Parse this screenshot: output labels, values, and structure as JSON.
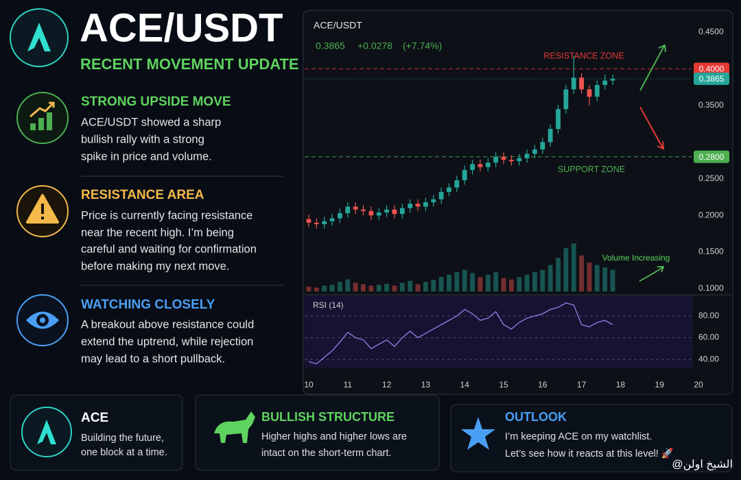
{
  "header": {
    "title": "ACE/USDT",
    "subtitle": "RECENT MOVEMENT UPDATE"
  },
  "sections": [
    {
      "title": "STRONG UPSIDE MOVE",
      "lines": [
        "ACE/USDT showed a sharp",
        "bullish rally with a strong",
        "spike in price and volume."
      ]
    },
    {
      "title": "RESISTANCE AREA",
      "lines": [
        "Price is currently facing resistance",
        "near the recent high. I’m being",
        "careful and waiting for confirmation",
        "before making my next move."
      ]
    },
    {
      "title": "WATCHING CLOSELY",
      "lines": [
        "A breakout above resistance could",
        "extend the uptrend, while rejection",
        "may lead to a short pullback."
      ]
    }
  ],
  "cards": [
    {
      "title": "ACE",
      "lines": [
        "Building the future,",
        "one block at a time."
      ]
    },
    {
      "title": "BULLISH STRUCTURE",
      "lines": [
        "Higher highs and higher lows are",
        "intact on the short-term chart."
      ]
    },
    {
      "title": "OUTLOOK",
      "lines": [
        "I’m keeping ACE on my watchlist.",
        "Let’s see how it reacts at this level! 🚀"
      ]
    }
  ],
  "watermark": "@الشيخ اولن",
  "chart_data": {
    "type": "candlestick",
    "title": "ACE/USDT",
    "price": "0.3865",
    "change": "+0.0278",
    "change_pct": "(+7.74%)",
    "up_color": "#26a69a",
    "down_color": "#ef5350",
    "x": [
      10.0,
      10.2,
      10.4,
      10.6,
      10.8,
      11.0,
      11.2,
      11.4,
      11.6,
      11.8,
      12.0,
      12.2,
      12.4,
      12.6,
      12.8,
      13.0,
      13.2,
      13.4,
      13.6,
      13.8,
      14.0,
      14.2,
      14.4,
      14.6,
      14.8,
      15.0,
      15.2,
      15.4,
      15.6,
      15.8,
      16.0,
      16.2,
      16.4,
      16.6,
      16.8,
      17.0,
      17.2,
      17.4,
      17.6,
      17.8
    ],
    "open": [
      0.195,
      0.19,
      0.188,
      0.192,
      0.196,
      0.203,
      0.212,
      0.208,
      0.206,
      0.2,
      0.204,
      0.208,
      0.202,
      0.21,
      0.216,
      0.212,
      0.218,
      0.222,
      0.232,
      0.238,
      0.248,
      0.262,
      0.27,
      0.266,
      0.272,
      0.28,
      0.276,
      0.274,
      0.278,
      0.284,
      0.29,
      0.3,
      0.318,
      0.345,
      0.372,
      0.388,
      0.372,
      0.362,
      0.378,
      0.384
    ],
    "high": [
      0.201,
      0.196,
      0.198,
      0.202,
      0.209,
      0.218,
      0.218,
      0.214,
      0.212,
      0.21,
      0.214,
      0.214,
      0.216,
      0.222,
      0.222,
      0.224,
      0.228,
      0.238,
      0.244,
      0.254,
      0.268,
      0.276,
      0.276,
      0.278,
      0.286,
      0.286,
      0.282,
      0.284,
      0.29,
      0.296,
      0.306,
      0.324,
      0.351,
      0.378,
      0.418,
      0.394,
      0.378,
      0.384,
      0.392,
      0.3925
    ],
    "low": [
      0.184,
      0.182,
      0.182,
      0.186,
      0.19,
      0.197,
      0.202,
      0.2,
      0.194,
      0.194,
      0.198,
      0.196,
      0.196,
      0.204,
      0.206,
      0.206,
      0.212,
      0.216,
      0.226,
      0.232,
      0.242,
      0.256,
      0.26,
      0.26,
      0.266,
      0.27,
      0.268,
      0.268,
      0.272,
      0.278,
      0.284,
      0.294,
      0.312,
      0.339,
      0.366,
      0.366,
      0.35,
      0.356,
      0.372,
      0.378
    ],
    "close": [
      0.19,
      0.188,
      0.192,
      0.196,
      0.203,
      0.212,
      0.208,
      0.206,
      0.2,
      0.204,
      0.208,
      0.202,
      0.21,
      0.216,
      0.212,
      0.218,
      0.222,
      0.232,
      0.238,
      0.248,
      0.262,
      0.27,
      0.266,
      0.272,
      0.28,
      0.276,
      0.274,
      0.278,
      0.284,
      0.29,
      0.3,
      0.318,
      0.345,
      0.372,
      0.388,
      0.372,
      0.362,
      0.378,
      0.384,
      0.3865
    ],
    "volume": [
      10,
      8,
      12,
      14,
      20,
      25,
      18,
      15,
      12,
      14,
      16,
      12,
      18,
      22,
      15,
      20,
      24,
      30,
      35,
      40,
      45,
      38,
      30,
      35,
      40,
      28,
      25,
      30,
      35,
      40,
      45,
      55,
      70,
      90,
      100,
      75,
      60,
      55,
      50,
      45
    ],
    "xlim": [
      10,
      20
    ],
    "xticks": [
      10,
      11,
      12,
      13,
      14,
      15,
      16,
      17,
      18,
      19,
      20
    ],
    "ylim": [
      0.1,
      0.45
    ],
    "yticks": [
      {
        "value": 0.1,
        "label": "0.1000"
      },
      {
        "value": 0.15,
        "label": "0.1500"
      },
      {
        "value": 0.2,
        "label": "0.2000"
      },
      {
        "value": 0.25,
        "label": "0.2500"
      },
      {
        "value": 0.35,
        "label": "0.3500"
      },
      {
        "value": 0.45,
        "label": "0.4500"
      }
    ],
    "levels": [
      {
        "name": "RESISTANCE ZONE",
        "value": 0.4,
        "label": "0.4000",
        "color": "#e53935"
      },
      {
        "value": 0.3865,
        "label": "0.3865",
        "color": "#26a69a"
      },
      {
        "name": "SUPPORT ZONE",
        "value": 0.28,
        "label": "0.2800",
        "color": "#4caf50"
      }
    ],
    "annotation": "Volume Increasing",
    "rsi": {
      "title": "RSI (14)",
      "color": "#9b7fe8",
      "values": [
        38,
        36,
        42,
        48,
        56,
        65,
        60,
        58,
        50,
        54,
        58,
        52,
        60,
        66,
        60,
        64,
        68,
        72,
        76,
        80,
        86,
        82,
        76,
        78,
        84,
        72,
        68,
        74,
        78,
        80,
        82,
        86,
        88,
        92,
        90,
        72,
        70,
        74,
        76,
        72
      ],
      "ylim": [
        25,
        95
      ],
      "yticks": [
        {
          "value": 40,
          "label": "40.00"
        },
        {
          "value": 60,
          "label": "60.00"
        },
        {
          "value": 80,
          "label": "80.00"
        }
      ]
    }
  }
}
